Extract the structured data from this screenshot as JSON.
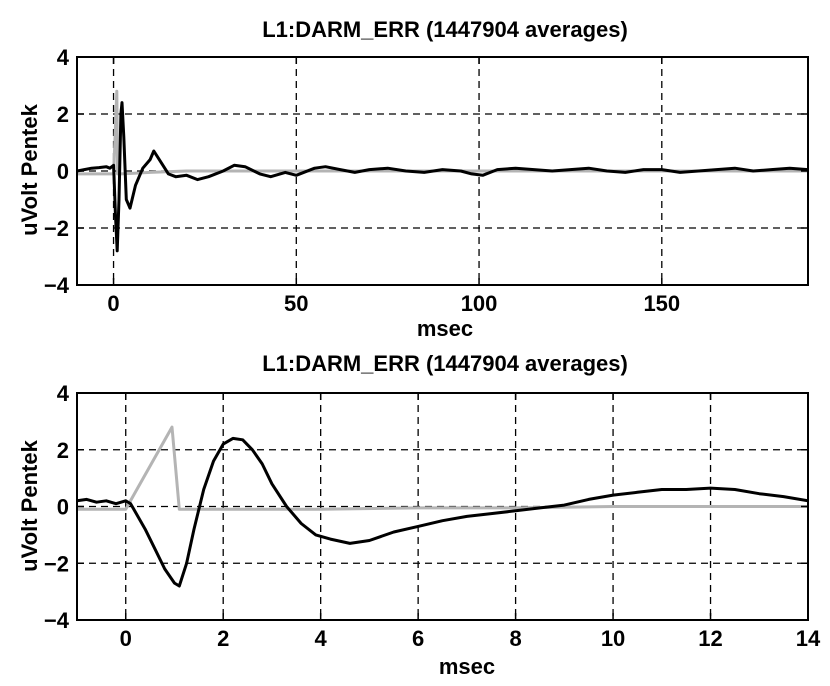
{
  "chart_data": [
    {
      "type": "line",
      "title": "L1:DARM_ERR (1447904 averages)",
      "xlabel": "msec",
      "ylabel": "uVolt Pentek",
      "xlim": [
        -10,
        190
      ],
      "ylim": [
        -4,
        4
      ],
      "xticks": [
        0,
        50,
        100,
        150
      ],
      "xtick_labels": [
        "0",
        "50",
        "100",
        "150"
      ],
      "yticks": [
        -4,
        -2,
        0,
        2,
        4
      ],
      "ytick_labels": [
        "−4",
        "−2",
        "0",
        "2",
        "4"
      ],
      "grid": true,
      "colors": {
        "response": "#000000",
        "excitation": "#b4b4b4"
      },
      "series": [
        {
          "color": "#000000",
          "x": [
            -10,
            -8,
            -6,
            -4,
            -2,
            -1,
            0,
            0.5,
            1,
            1.5,
            2,
            2.3,
            2.8,
            3.5,
            4.5,
            6,
            8,
            10,
            11,
            13,
            15,
            17,
            20,
            23,
            26,
            30,
            33,
            36,
            40,
            43,
            47,
            50,
            55,
            58,
            62,
            66,
            70,
            75,
            80,
            85,
            90,
            95,
            98,
            101,
            105,
            110,
            115,
            120,
            125,
            130,
            135,
            140,
            145,
            150,
            155,
            160,
            165,
            170,
            175,
            180,
            185,
            190
          ],
          "y": [
            0.0,
            0.05,
            0.1,
            0.12,
            0.15,
            0.1,
            0.2,
            -1.5,
            -2.8,
            -1.0,
            2.0,
            2.4,
            1.2,
            -1.0,
            -1.3,
            -0.5,
            0.1,
            0.4,
            0.7,
            0.3,
            -0.1,
            -0.2,
            -0.15,
            -0.3,
            -0.2,
            0.0,
            0.2,
            0.15,
            -0.1,
            -0.2,
            -0.05,
            -0.15,
            0.1,
            0.15,
            0.05,
            -0.05,
            0.05,
            0.1,
            0.0,
            -0.05,
            0.05,
            0.0,
            -0.1,
            -0.15,
            0.05,
            0.1,
            0.05,
            0.0,
            0.05,
            0.1,
            0.0,
            -0.05,
            0.05,
            0.05,
            -0.05,
            0.0,
            0.05,
            0.1,
            0.0,
            0.05,
            0.1,
            0.05
          ]
        },
        {
          "color": "#b4b4b4",
          "x": [
            -10,
            0,
            0.9,
            1.1,
            2,
            10,
            20,
            40,
            100,
            190
          ],
          "y": [
            -0.1,
            -0.1,
            2.8,
            -0.1,
            -0.1,
            -0.05,
            0.0,
            0.0,
            0.0,
            0.0
          ]
        }
      ]
    },
    {
      "type": "line",
      "title": "L1:DARM_ERR (1447904 averages)",
      "xlabel": "msec",
      "ylabel": "uVolt Pentek",
      "xlim": [
        -1,
        14
      ],
      "ylim": [
        -4,
        4
      ],
      "xticks": [
        0,
        2,
        4,
        6,
        8,
        10,
        12,
        14
      ],
      "xtick_labels": [
        "0",
        "2",
        "4",
        "6",
        "8",
        "10",
        "12",
        "14"
      ],
      "yticks": [
        -4,
        -2,
        0,
        2,
        4
      ],
      "ytick_labels": [
        "−4",
        "−2",
        "0",
        "2",
        "4"
      ],
      "grid": true,
      "colors": {
        "response": "#000000",
        "excitation": "#b4b4b4"
      },
      "series": [
        {
          "color": "#000000",
          "x": [
            -1,
            -0.8,
            -0.6,
            -0.4,
            -0.2,
            0,
            0.1,
            0.2,
            0.4,
            0.6,
            0.8,
            1.0,
            1.1,
            1.25,
            1.4,
            1.6,
            1.8,
            2.0,
            2.2,
            2.4,
            2.6,
            2.8,
            3.0,
            3.3,
            3.6,
            3.9,
            4.2,
            4.6,
            5.0,
            5.5,
            6.0,
            6.5,
            7.0,
            7.5,
            8.0,
            8.5,
            9.0,
            9.5,
            10.0,
            10.5,
            11.0,
            11.5,
            12.0,
            12.5,
            13.0,
            13.5,
            14.0
          ],
          "y": [
            0.2,
            0.25,
            0.15,
            0.2,
            0.1,
            0.2,
            0.1,
            -0.2,
            -0.8,
            -1.5,
            -2.2,
            -2.7,
            -2.8,
            -2.0,
            -0.8,
            0.6,
            1.6,
            2.2,
            2.4,
            2.35,
            2.0,
            1.5,
            0.8,
            0.0,
            -0.6,
            -1.0,
            -1.15,
            -1.3,
            -1.2,
            -0.9,
            -0.7,
            -0.5,
            -0.35,
            -0.25,
            -0.15,
            -0.05,
            0.05,
            0.25,
            0.4,
            0.5,
            0.6,
            0.6,
            0.65,
            0.6,
            0.45,
            0.35,
            0.2
          ]
        },
        {
          "color": "#b4b4b4",
          "x": [
            -1,
            0,
            0.95,
            1.1,
            2,
            4,
            6,
            8,
            10,
            12,
            14
          ],
          "y": [
            -0.1,
            -0.1,
            2.8,
            -0.1,
            -0.1,
            -0.1,
            -0.05,
            -0.05,
            0.0,
            0.0,
            0.0
          ]
        }
      ]
    }
  ]
}
